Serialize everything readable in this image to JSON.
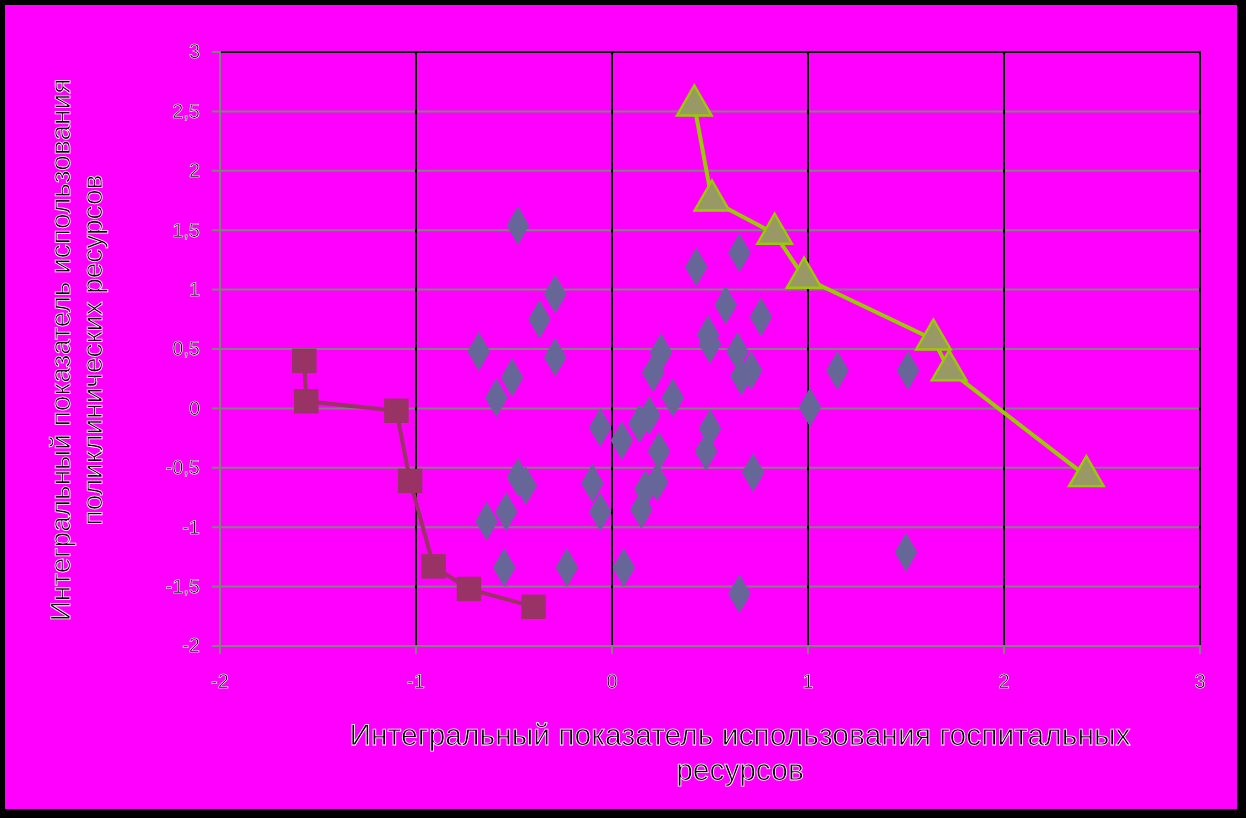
{
  "chart_data": {
    "type": "scatter",
    "xlabel": "Интегральный показатель использования госпитальных ресурсов",
    "ylabel": "Интегральный показатель использования поликлинических ресурсов",
    "xlim": [
      -2,
      3
    ],
    "xticks": [
      -2,
      -1,
      0,
      1,
      2,
      3
    ],
    "ylim": [
      -2,
      3
    ],
    "yticks": [
      {
        "value": -2,
        "label": "-2"
      },
      {
        "value": -1.5,
        "label": "-1,5"
      },
      {
        "value": -1,
        "label": "-1"
      },
      {
        "value": -0.5,
        "label": "-0,5"
      },
      {
        "value": 0,
        "label": "0"
      },
      {
        "value": 0.5,
        "label": "0,5"
      },
      {
        "value": 1,
        "label": "1"
      },
      {
        "value": 1.5,
        "label": "1,5"
      },
      {
        "value": 2,
        "label": "2"
      },
      {
        "value": 2.5,
        "label": "2,5"
      },
      {
        "value": 3,
        "label": "3"
      }
    ],
    "grid": true,
    "series": [
      {
        "marker": "diamond",
        "color": "#666699",
        "x": [
          -0.48,
          -0.29,
          -0.37,
          -0.29,
          -0.68,
          -0.51,
          -0.59,
          -0.48,
          -0.44,
          -0.64,
          -0.54,
          -0.55,
          -0.23,
          -0.06,
          -0.1,
          -0.06,
          0.06,
          0.05,
          0.14,
          0.19,
          0.24,
          0.23,
          0.17,
          0.15,
          0.31,
          0.21,
          0.25,
          0.43,
          0.65,
          0.58,
          0.76,
          0.49,
          0.5,
          0.64,
          0.66,
          0.71,
          0.5,
          0.48,
          0.72,
          0.65,
          1.01,
          1.15,
          1.51,
          1.5
        ],
        "values": [
          1.54,
          0.96,
          0.75,
          0.43,
          0.48,
          0.26,
          0.09,
          -0.58,
          -0.65,
          -0.95,
          -0.87,
          -1.34,
          -1.34,
          -0.16,
          -0.63,
          -0.87,
          -1.34,
          -0.27,
          -0.13,
          -0.06,
          -0.36,
          -0.62,
          -0.68,
          -0.85,
          0.09,
          0.3,
          0.47,
          1.19,
          1.31,
          0.87,
          0.77,
          0.62,
          0.54,
          0.48,
          0.27,
          0.32,
          -0.17,
          -0.36,
          -0.54,
          -1.56,
          0.01,
          0.32,
          0.32,
          -1.21
        ]
      },
      {
        "type": "line",
        "marker": "square",
        "color": "#993366",
        "x": [
          -1.57,
          -1.56,
          -1.1,
          -1.03,
          -0.91,
          -0.73,
          -0.4
        ],
        "values": [
          0.4,
          0.06,
          -0.02,
          -0.61,
          -1.33,
          -1.52,
          -1.67
        ]
      },
      {
        "type": "line",
        "marker": "triangle",
        "color": "#99cc00",
        "x": [
          0.42,
          0.51,
          0.83,
          0.98,
          1.64,
          1.72,
          2.42
        ],
        "values": [
          2.55,
          1.75,
          1.47,
          1.1,
          0.58,
          0.32,
          -0.57
        ]
      }
    ]
  }
}
